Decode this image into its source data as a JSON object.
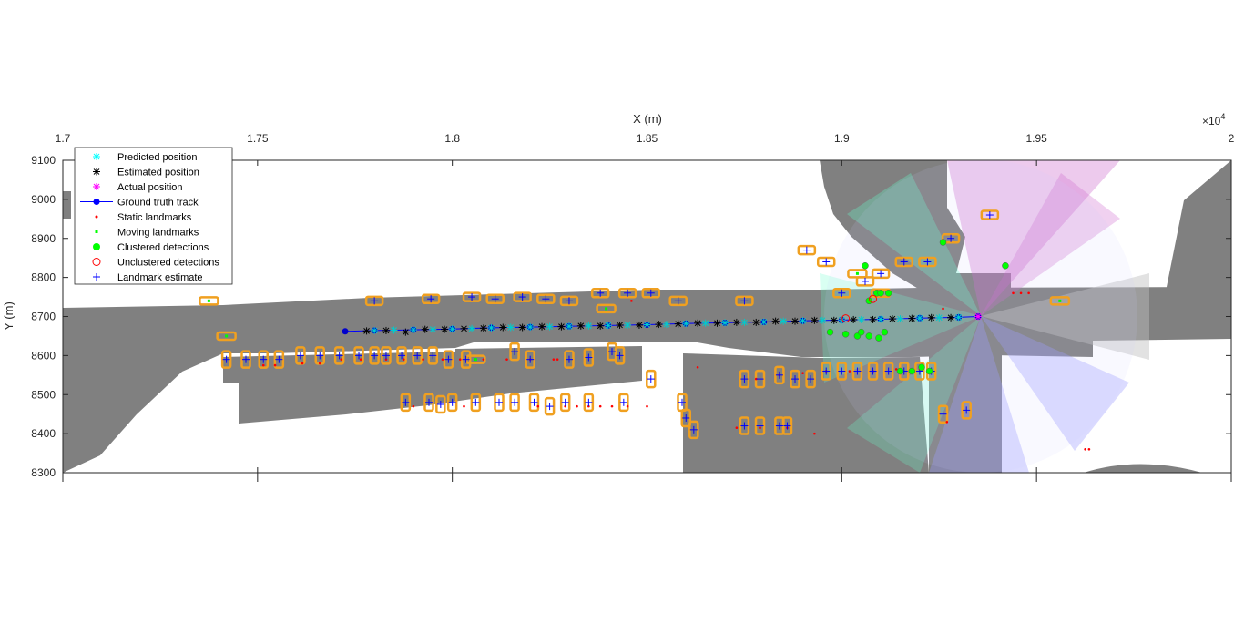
{
  "chart_data": {
    "type": "scatter",
    "title": "",
    "xlabel": "X (m)",
    "ylabel": "Y (m)",
    "x_exponent_label": "×10",
    "x_exponent": "4",
    "xlim": [
      17000,
      20000
    ],
    "ylim": [
      8300,
      9100
    ],
    "xticks": [
      17000,
      17500,
      18000,
      18500,
      19000,
      19500,
      20000
    ],
    "xtick_labels": [
      "1.7",
      "1.75",
      "1.8",
      "1.85",
      "1.9",
      "1.95",
      "2"
    ],
    "yticks": [
      8300,
      8400,
      8500,
      8600,
      8700,
      8800,
      8900,
      9000,
      9100
    ],
    "ytick_labels": [
      "8300",
      "8400",
      "8500",
      "8600",
      "8700",
      "8800",
      "8900",
      "9000",
      "9100"
    ],
    "x_axis_location": "top",
    "grid": false,
    "legend_position": "top-left",
    "legend": [
      {
        "label": "Predicted position",
        "marker": "asterisk",
        "color": "#00ffff"
      },
      {
        "label": "Estimated position",
        "marker": "asterisk",
        "color": "#000000"
      },
      {
        "label": "Actual position",
        "marker": "asterisk",
        "color": "#ff00ff"
      },
      {
        "label": "Ground truth track",
        "marker": "line-dot",
        "color": "#0000ff"
      },
      {
        "label": "Static landmarks",
        "marker": "small-dot",
        "color": "#ff0000"
      },
      {
        "label": "Moving landmarks",
        "marker": "small-square",
        "color": "#00ff00"
      },
      {
        "label": "Clustered detections",
        "marker": "filled-circle",
        "color": "#00ff00"
      },
      {
        "label": "Unclustered detections",
        "marker": "open-circle",
        "color": "#ff0000"
      },
      {
        "label": "Landmark estimate",
        "marker": "plus",
        "color": "#0000ff"
      }
    ],
    "map_color": "#808080",
    "box_color": "#f0a020",
    "ground_truth_track": {
      "x": [
        17725,
        17800,
        17900,
        18000,
        18100,
        18200,
        18300,
        18400,
        18500,
        18600,
        18700,
        18800,
        18900,
        19000,
        19100,
        19200,
        19300,
        19350
      ],
      "y": [
        8662,
        8664,
        8666,
        8668,
        8671,
        8673,
        8675,
        8677,
        8679,
        8682,
        8684,
        8686,
        8689,
        8691,
        8693,
        8696,
        8698,
        8700
      ]
    },
    "predicted_positions": {
      "x": [
        17800,
        17850,
        17900,
        17950,
        18000,
        18050,
        18100,
        18150,
        18200,
        18250,
        18300,
        18350,
        18400,
        18450,
        18500,
        18550,
        18600,
        18650,
        18700,
        18750,
        18800,
        18850,
        18900,
        18950,
        19000,
        19050,
        19100,
        19150,
        19200,
        19250,
        19300
      ],
      "y": [
        8664,
        8665,
        8666,
        8667,
        8668,
        8669,
        8671,
        8672,
        8673,
        8674,
        8675,
        8676,
        8677,
        8678,
        8679,
        8680,
        8682,
        8683,
        8684,
        8685,
        8686,
        8688,
        8689,
        8690,
        8691,
        8692,
        8693,
        8694,
        8696,
        8697,
        8698
      ]
    },
    "estimated_positions": {
      "x": [
        17780,
        17830,
        17880,
        17930,
        17980,
        18030,
        18080,
        18130,
        18180,
        18230,
        18280,
        18330,
        18380,
        18430,
        18480,
        18530,
        18580,
        18630,
        18680,
        18730,
        18780,
        18830,
        18880,
        18930,
        18980,
        19030,
        19080,
        19130,
        19180,
        19230,
        19280
      ],
      "y": [
        8663,
        8664,
        8660,
        8667,
        8667,
        8669,
        8670,
        8672,
        8672,
        8674,
        8674,
        8676,
        8676,
        8678,
        8678,
        8680,
        8681,
        8683,
        8683,
        8685,
        8685,
        8688,
        8688,
        8690,
        8690,
        8692,
        8692,
        8694,
        8695,
        8697,
        8697
      ]
    },
    "actual_position": {
      "x": 19350,
      "y": 8700
    },
    "static_landmarks": {
      "x": [
        17515,
        17545,
        17615,
        17660,
        17715,
        17765,
        17830,
        17875,
        17925,
        17975,
        18020,
        18080,
        18140,
        18200,
        18260,
        18320,
        18380,
        18450,
        18500,
        17900,
        18030,
        18220,
        18290,
        18350,
        18410,
        18270,
        18460,
        18630,
        18780,
        18840,
        18900,
        18960,
        19020,
        19080,
        19140,
        19200,
        19270,
        18730,
        18790,
        18860,
        18930,
        19260,
        19625,
        19635,
        19440,
        19460,
        19480
      ],
      "y": [
        8575,
        8575,
        8580,
        8580,
        8590,
        8590,
        8590,
        8590,
        8590,
        8590,
        8590,
        8590,
        8590,
        8590,
        8590,
        8470,
        8470,
        8470,
        8470,
        8470,
        8470,
        8470,
        8470,
        8470,
        8470,
        8590,
        8740,
        8570,
        8540,
        8550,
        8555,
        8560,
        8560,
        8560,
        8565,
        8565,
        8430,
        8415,
        8415,
        8415,
        8400,
        8720,
        8360,
        8360,
        8760,
        8760,
        8760
      ]
    },
    "moving_landmarks": {
      "x": [
        17375,
        17420,
        18060,
        18395,
        19040,
        19100,
        19560
      ],
      "y": [
        8740,
        8650,
        8590,
        8720,
        8810,
        8760,
        8740
      ]
    },
    "clustered_detections": {
      "x": [
        19060,
        19070,
        19090,
        19100,
        19120,
        19260,
        19420,
        18970,
        19010,
        19040,
        19050,
        19070,
        19095,
        19110,
        19150,
        19180,
        19205,
        19225
      ],
      "y": [
        8830,
        8740,
        8760,
        8760,
        8760,
        8890,
        8830,
        8660,
        8655,
        8650,
        8660,
        8650,
        8645,
        8660,
        8560,
        8560,
        8570,
        8560
      ]
    },
    "unclustered_detections": {
      "x": [
        19010,
        19080
      ],
      "y": [
        8695,
        8745
      ]
    },
    "landmark_estimates": {
      "x": [
        17800,
        17945,
        18050,
        18110,
        18180,
        18240,
        18300,
        18380,
        18450,
        18510,
        18580,
        18750,
        17420,
        17470,
        17515,
        17555,
        17610,
        17660,
        17710,
        17760,
        17800,
        17830,
        17870,
        17910,
        17950,
        17990,
        18035,
        18160,
        18200,
        18300,
        18350,
        18410,
        18430,
        18510,
        17880,
        17940,
        17970,
        18000,
        18060,
        18120,
        18160,
        18210,
        18250,
        18290,
        18350,
        18440,
        18590,
        18600,
        18620,
        18750,
        18790,
        18840,
        18880,
        18920,
        18960,
        19000,
        19040,
        19080,
        19120,
        19160,
        19200,
        19230,
        18750,
        18790,
        18840,
        18860,
        19260,
        19320,
        18910,
        18960,
        19000,
        19060,
        19100,
        19160,
        19220,
        19280,
        19380
      ],
      "y": [
        8740,
        8745,
        8750,
        8745,
        8750,
        8745,
        8740,
        8760,
        8760,
        8760,
        8740,
        8740,
        8590,
        8590,
        8590,
        8590,
        8600,
        8600,
        8600,
        8600,
        8600,
        8600,
        8600,
        8600,
        8600,
        8590,
        8590,
        8610,
        8590,
        8590,
        8595,
        8610,
        8600,
        8540,
        8480,
        8480,
        8475,
        8480,
        8480,
        8480,
        8480,
        8480,
        8470,
        8480,
        8480,
        8480,
        8480,
        8440,
        8410,
        8540,
        8540,
        8550,
        8540,
        8540,
        8560,
        8560,
        8560,
        8560,
        8560,
        8560,
        8560,
        8560,
        8420,
        8420,
        8420,
        8420,
        8450,
        8460,
        8870,
        8840,
        8760,
        8790,
        8810,
        8840,
        8840,
        8900,
        8960
      ]
    },
    "annotations": [
      "sensor field-of-view sectors around ego vehicle"
    ]
  }
}
